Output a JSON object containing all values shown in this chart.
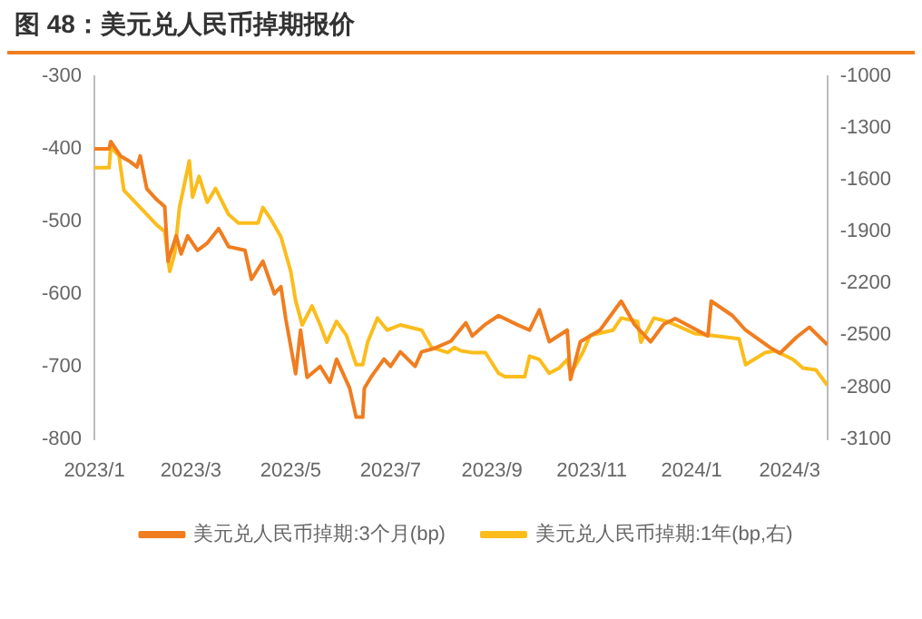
{
  "chart_data": {
    "type": "line",
    "title": "图 48：美元兑人民币掉期报价",
    "xlim": [
      "2023-01-01",
      "2024-03-24"
    ],
    "xticks": [
      {
        "value": "2023-01-01",
        "label": "2023/1"
      },
      {
        "value": "2023-03-01",
        "label": "2023/3"
      },
      {
        "value": "2023-05-01",
        "label": "2023/5"
      },
      {
        "value": "2023-07-01",
        "label": "2023/7"
      },
      {
        "value": "2023-09-01",
        "label": "2023/9"
      },
      {
        "value": "2023-11-01",
        "label": "2023/11"
      },
      {
        "value": "2024-01-01",
        "label": "2024/1"
      },
      {
        "value": "2024-03-01",
        "label": "2024/3"
      }
    ],
    "ylim": [
      -800,
      -300
    ],
    "yticks": [
      -800,
      -700,
      -600,
      -500,
      -400,
      -300
    ],
    "y2lim": [
      -3100,
      -1000
    ],
    "y2ticks": [
      -3100,
      -2800,
      -2500,
      -2200,
      -1900,
      -1600,
      -1300,
      -1000
    ],
    "grid": false,
    "legend": "bottom",
    "marker": "none",
    "line_style": "solid",
    "series": [
      {
        "name": "美元兑人民币掉期:3个月(bp)",
        "color": "#f07d1f",
        "x": [
          "2023-01-01",
          "2023-01-10",
          "2023-01-11",
          "2023-01-17",
          "2023-01-23",
          "2023-01-27",
          "2023-01-29",
          "2023-02-02",
          "2023-02-08",
          "2023-02-13",
          "2023-02-15",
          "2023-02-20",
          "2023-02-23",
          "2023-02-27",
          "2023-03-05",
          "2023-03-11",
          "2023-03-18",
          "2023-03-24",
          "2023-04-03",
          "2023-04-07",
          "2023-04-14",
          "2023-04-21",
          "2023-04-25",
          "2023-04-28",
          "2023-05-04",
          "2023-05-07",
          "2023-05-11",
          "2023-05-19",
          "2023-05-25",
          "2023-05-29",
          "2023-06-06",
          "2023-06-10",
          "2023-06-14",
          "2023-06-15",
          "2023-06-19",
          "2023-06-27",
          "2023-07-01",
          "2023-07-07",
          "2023-07-16",
          "2023-07-20",
          "2023-07-28",
          "2023-08-07",
          "2023-08-16",
          "2023-08-20",
          "2023-08-28",
          "2023-09-05",
          "2023-09-16",
          "2023-09-24",
          "2023-09-30",
          "2023-10-06",
          "2023-10-17",
          "2023-10-19",
          "2023-10-25",
          "2023-11-06",
          "2023-11-19",
          "2023-11-27",
          "2023-12-07",
          "2023-12-15",
          "2023-12-22",
          "2024-01-11",
          "2024-01-13",
          "2024-01-26",
          "2024-02-03",
          "2024-02-18",
          "2024-02-24",
          "2024-03-05",
          "2024-03-13",
          "2024-03-24"
        ],
        "values": [
          -400,
          -400,
          -390,
          -410,
          -418,
          -425,
          -410,
          -455,
          -470,
          -480,
          -555,
          -520,
          -545,
          -520,
          -540,
          -530,
          -510,
          -535,
          -540,
          -580,
          -555,
          -600,
          -590,
          -635,
          -710,
          -650,
          -715,
          -700,
          -722,
          -690,
          -730,
          -770,
          -770,
          -730,
          -715,
          -690,
          -700,
          -680,
          -700,
          -680,
          -675,
          -665,
          -640,
          -658,
          -642,
          -630,
          -642,
          -650,
          -622,
          -666,
          -650,
          -718,
          -666,
          -650,
          -610,
          -642,
          -666,
          -642,
          -634,
          -658,
          -610,
          -630,
          -650,
          -674,
          -682,
          -660,
          -646,
          -670
        ]
      },
      {
        "name": "美元兑人民币掉期:1年(bp,右)",
        "color": "#fbbd1c",
        "axis": "y2",
        "x": [
          "2023-01-01",
          "2023-01-10",
          "2023-01-11",
          "2023-01-16",
          "2023-01-19",
          "2023-01-29",
          "2023-02-08",
          "2023-02-13",
          "2023-02-16",
          "2023-02-19",
          "2023-02-22",
          "2023-02-28",
          "2023-03-02",
          "2023-03-06",
          "2023-03-11",
          "2023-03-16",
          "2023-03-24",
          "2023-03-30",
          "2023-04-11",
          "2023-04-14",
          "2023-04-19",
          "2023-04-25",
          "2023-05-01",
          "2023-05-04",
          "2023-05-08",
          "2023-05-14",
          "2023-05-19",
          "2023-05-23",
          "2023-05-29",
          "2023-06-04",
          "2023-06-10",
          "2023-06-14",
          "2023-06-17",
          "2023-06-23",
          "2023-06-29",
          "2023-07-07",
          "2023-07-20",
          "2023-07-26",
          "2023-08-05",
          "2023-08-09",
          "2023-08-13",
          "2023-08-20",
          "2023-08-28",
          "2023-09-05",
          "2023-09-09",
          "2023-09-21",
          "2023-09-24",
          "2023-09-30",
          "2023-10-06",
          "2023-10-12",
          "2023-10-17",
          "2023-10-19",
          "2023-10-23",
          "2023-10-27",
          "2023-10-31",
          "2023-11-14",
          "2023-11-19",
          "2023-11-29",
          "2023-12-01",
          "2023-12-09",
          "2023-12-17",
          "2023-12-22",
          "2024-01-03",
          "2024-01-13",
          "2024-01-30",
          "2024-02-03",
          "2024-02-15",
          "2024-02-21",
          "2024-03-03",
          "2024-03-09",
          "2024-03-17",
          "2024-03-24"
        ],
        "values": [
          -1530,
          -1530,
          -1410,
          -1460,
          -1660,
          -1760,
          -1860,
          -1900,
          -2130,
          -2030,
          -1760,
          -1490,
          -1700,
          -1580,
          -1730,
          -1650,
          -1800,
          -1850,
          -1850,
          -1760,
          -1830,
          -1930,
          -2130,
          -2300,
          -2440,
          -2330,
          -2440,
          -2540,
          -2420,
          -2500,
          -2670,
          -2670,
          -2540,
          -2400,
          -2470,
          -2440,
          -2470,
          -2570,
          -2600,
          -2570,
          -2590,
          -2600,
          -2600,
          -2720,
          -2740,
          -2740,
          -2620,
          -2640,
          -2720,
          -2690,
          -2640,
          -2720,
          -2660,
          -2590,
          -2500,
          -2470,
          -2400,
          -2420,
          -2540,
          -2400,
          -2420,
          -2440,
          -2490,
          -2500,
          -2520,
          -2670,
          -2600,
          -2590,
          -2640,
          -2690,
          -2700,
          -2790
        ]
      }
    ]
  }
}
